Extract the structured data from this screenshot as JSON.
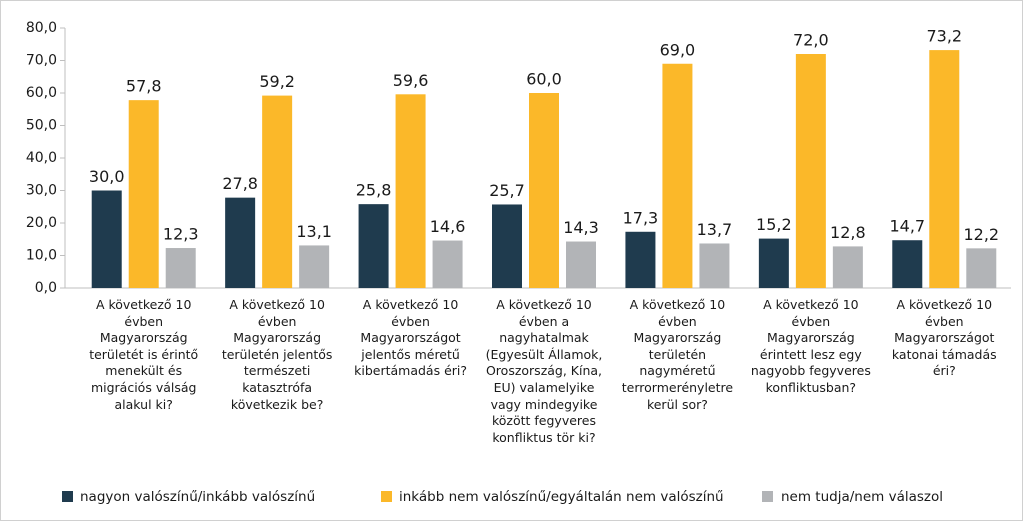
{
  "chart_data": {
    "type": "bar",
    "categories": [
      "A következő 10 évben Magyarország területét is érintő menekült és migrációs válság alakul ki?",
      "A következő 10 évben Magyarország területén jelentős természeti katasztrófa következik be?",
      "A következő 10 évben Magyarországot jelentős méretű kibertámadás éri?",
      "A következő 10 évben a nagyhatalmak (Egyesült Államok, Oroszország, Kína, EU) valamelyike vagy mindegyike között fegyveres konfliktus tör ki?",
      "A következő 10 évben Magyarország területén nagyméretű terrormerényletre kerül sor?",
      "A következő 10 évben Magyarország érintett lesz egy nagyobb fegyveres konfliktusban?",
      "A következő 10 évben Magyarországot katonai támadás éri?"
    ],
    "series": [
      {
        "name": "nagyon valószínű/inkább valószínű",
        "color": "#1f3b4e",
        "values": [
          30.0,
          27.8,
          25.8,
          25.7,
          17.3,
          15.2,
          14.7
        ],
        "value_labels": [
          "30,0",
          "27,8",
          "25,8",
          "25,7",
          "17,3",
          "15,2",
          "14,7"
        ]
      },
      {
        "name": "inkább nem valószínű/egyáltalán nem valószínű",
        "color": "#fbb829",
        "values": [
          57.8,
          59.2,
          59.6,
          60.0,
          69.0,
          72.0,
          73.2
        ],
        "value_labels": [
          "57,8",
          "59,2",
          "59,6",
          "60,0",
          "69,0",
          "72,0",
          "73,2"
        ]
      },
      {
        "name": "nem tudja/nem válaszol",
        "color": "#b2b4b7",
        "values": [
          12.3,
          13.1,
          14.6,
          14.3,
          13.7,
          12.8,
          12.2
        ],
        "value_labels": [
          "12,3",
          "13,1",
          "14,6",
          "14,3",
          "13,7",
          "12,8",
          "12,2"
        ]
      }
    ],
    "ylim": [
      0,
      80
    ],
    "yticks": [
      {
        "value": 0,
        "label": "0,0"
      },
      {
        "value": 10,
        "label": "10,0"
      },
      {
        "value": 20,
        "label": "20,0"
      },
      {
        "value": 30,
        "label": "30,0"
      },
      {
        "value": 40,
        "label": "40,0"
      },
      {
        "value": 50,
        "label": "50,0"
      },
      {
        "value": 60,
        "label": "60,0"
      },
      {
        "value": 70,
        "label": "70,0"
      },
      {
        "value": 80,
        "label": "80,0"
      }
    ],
    "grid": false,
    "legend": "bottom"
  }
}
